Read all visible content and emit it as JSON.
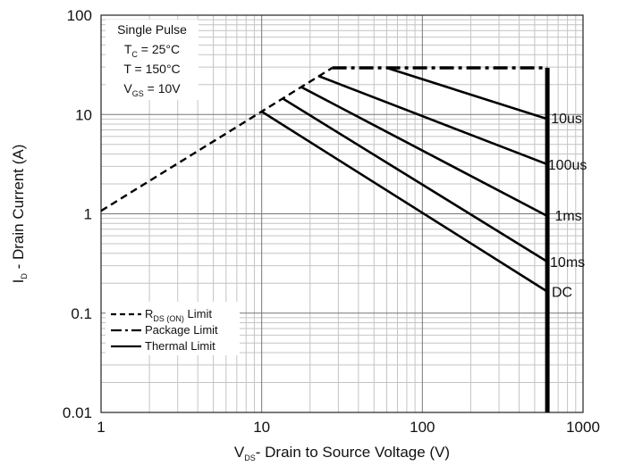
{
  "chart_data": {
    "type": "line",
    "scale": {
      "x": "log",
      "y": "log"
    },
    "xlim": [
      1,
      1000
    ],
    "ylim": [
      0.01,
      100
    ],
    "x_ticks": [
      "1",
      "10",
      "100",
      "1000"
    ],
    "y_ticks": [
      "100",
      "10",
      "1",
      "0.1",
      "0.01"
    ],
    "grid": true,
    "xlabel": {
      "prefix": "V",
      "sub": "DS",
      "suffix": "- Drain to Source Voltage (V)"
    },
    "ylabel": {
      "prefix": "I",
      "sub": "D",
      "suffix": " - Drain Current (A)"
    },
    "conditions": {
      "title": "Single Pulse",
      "tc": {
        "prefix": "T",
        "sub": "C",
        "suffix": " = 25°C"
      },
      "t": "T = 150°C",
      "vgs": {
        "prefix": "V",
        "sub": "GS",
        "suffix": " = 10V"
      }
    },
    "legend": {
      "placement": "bottom-left",
      "items": [
        {
          "prefix": "R",
          "sub": "DS (ON)",
          "suffix": " Limit",
          "style": "dashed"
        },
        {
          "prefix": "",
          "sub": "",
          "suffix": "Package Limit",
          "style": "dash-dot"
        },
        {
          "prefix": "",
          "sub": "",
          "suffix": "Thermal Limit",
          "style": "solid"
        }
      ]
    },
    "series": [
      {
        "name": "RDS(ON) Limit",
        "style": "dashed",
        "points": [
          [
            1,
            1.07
          ],
          [
            27.5,
            29.5
          ]
        ]
      },
      {
        "name": "Package Limit",
        "style": "dash-dot",
        "points": [
          [
            27.5,
            29.5
          ],
          [
            600,
            29.5
          ]
        ]
      },
      {
        "name": "10us",
        "style": "solid",
        "points": [
          [
            60,
            29.5
          ],
          [
            600,
            9.0
          ]
        ]
      },
      {
        "name": "100us",
        "style": "solid",
        "points": [
          [
            22.5,
            24.5
          ],
          [
            600,
            3.15
          ]
        ]
      },
      {
        "name": "1ms",
        "style": "solid",
        "points": [
          [
            17.5,
            19.0
          ],
          [
            600,
            0.95
          ]
        ]
      },
      {
        "name": "10ms",
        "style": "solid",
        "points": [
          [
            13.5,
            14.5
          ],
          [
            600,
            0.33
          ]
        ]
      },
      {
        "name": "DC",
        "style": "solid",
        "points": [
          [
            10.0,
            10.7
          ],
          [
            600,
            0.165
          ]
        ]
      },
      {
        "name": "VDS max",
        "style": "bold",
        "points": [
          [
            600,
            29.5
          ],
          [
            600,
            0.01
          ]
        ]
      }
    ],
    "curve_labels": [
      {
        "text": "10us",
        "x": 790,
        "y": 9.3
      },
      {
        "text": "100us",
        "x": 800,
        "y": 3.15
      },
      {
        "text": "1ms",
        "x": 810,
        "y": 0.97
      },
      {
        "text": "10ms",
        "x": 800,
        "y": 0.33
      },
      {
        "text": "DC",
        "x": 740,
        "y": 0.165
      }
    ]
  }
}
